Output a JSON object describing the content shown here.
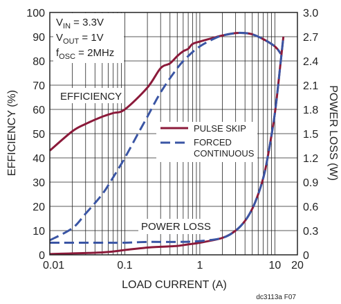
{
  "chart_data": {
    "type": "line",
    "x_scale": "log",
    "xlim": [
      0.01,
      20
    ],
    "x_ticks": [
      0.01,
      0.1,
      1,
      10,
      20
    ],
    "x_tick_labels": [
      "0.01",
      "0.1",
      "1",
      "10",
      "20"
    ],
    "xlabel": "LOAD CURRENT (A)",
    "ylabel_left": "EFFICIENCY (%)",
    "ylim_left": [
      0,
      100
    ],
    "y_ticks_left": [
      0,
      10,
      20,
      30,
      40,
      50,
      60,
      70,
      80,
      90,
      100
    ],
    "y_tick_labels_left": [
      "0",
      "10",
      "20",
      "30",
      "40",
      "50",
      "60",
      "70",
      "80",
      "90",
      "100"
    ],
    "ylabel_right": "POWER LOSS (W)",
    "ylim_right": [
      0,
      3.0
    ],
    "y_ticks_right": [
      0,
      0.3,
      0.6,
      0.9,
      1.2,
      1.5,
      1.8,
      2.1,
      2.4,
      2.7,
      3.0
    ],
    "y_tick_labels_right": [
      "0",
      "0.3",
      "0.6",
      "0.9",
      "1.2",
      "1.5",
      "1.8",
      "2.1",
      "2.4",
      "2.7",
      "3.0"
    ],
    "grid": true,
    "conditions": [
      {
        "sym": "V",
        "sub": "IN",
        "rest": " = 3.3V"
      },
      {
        "sym": "V",
        "sub": "OUT",
        "rest": " = 1V"
      },
      {
        "sym": "f",
        "sub": "OSC",
        "rest": " = 2MHz"
      }
    ],
    "annotations": {
      "efficiency": "EFFICIENCY",
      "power_loss": "POWER LOSS"
    },
    "legend": {
      "position": "center-right",
      "entries": [
        {
          "name_lines": [
            "PULSE SKIP"
          ],
          "style": "solid",
          "color": "#8b1a3a"
        },
        {
          "name_lines": [
            "FORCED",
            "CONTINUOUS"
          ],
          "style": "dashed",
          "color": "#3a55a4"
        }
      ]
    },
    "series": [
      {
        "name": "PULSE SKIP",
        "role": "efficiency",
        "axis": "left",
        "color": "#8b1a3a",
        "style": "solid",
        "x": [
          0.01,
          0.02,
          0.03,
          0.05,
          0.07,
          0.1,
          0.2,
          0.3,
          0.4,
          0.5,
          0.6,
          0.7,
          0.8,
          1,
          1.5,
          2,
          3,
          4,
          5,
          7,
          10,
          12
        ],
        "y": [
          43,
          51,
          54,
          57,
          58.5,
          60,
          69,
          77,
          79,
          82,
          84,
          85,
          87,
          88,
          89.5,
          90.5,
          91.5,
          91.5,
          91,
          89,
          86,
          83
        ]
      },
      {
        "name": "FORCED CONTINUOUS",
        "role": "efficiency",
        "axis": "left",
        "color": "#3a55a4",
        "style": "dashed",
        "x": [
          0.01,
          0.02,
          0.03,
          0.05,
          0.07,
          0.1,
          0.15,
          0.2,
          0.3,
          0.5,
          0.7,
          1,
          1.5,
          2,
          3,
          4,
          5,
          7,
          10,
          12
        ],
        "y": [
          6,
          11,
          17,
          25,
          32,
          40,
          50,
          57,
          67,
          77,
          82,
          86,
          89,
          90.5,
          91.5,
          91.5,
          91,
          89,
          86,
          83
        ]
      },
      {
        "name": "PULSE SKIP",
        "role": "power_loss",
        "axis": "right",
        "color": "#8b1a3a",
        "style": "solid",
        "x": [
          0.01,
          0.05,
          0.1,
          0.2,
          0.3,
          0.5,
          0.7,
          1,
          2,
          3,
          4,
          5,
          6,
          7,
          8,
          10,
          12,
          13
        ],
        "y": [
          0.01,
          0.03,
          0.06,
          0.09,
          0.1,
          0.11,
          0.13,
          0.15,
          0.21,
          0.3,
          0.42,
          0.57,
          0.75,
          0.95,
          1.2,
          1.75,
          2.4,
          2.7
        ]
      },
      {
        "name": "FORCED CONTINUOUS",
        "role": "power_loss",
        "axis": "right",
        "color": "#3a55a4",
        "style": "dashed",
        "x": [
          0.01,
          0.05,
          0.1,
          0.2,
          0.5,
          1,
          2,
          3,
          4,
          5,
          6,
          7,
          8,
          10,
          12,
          13
        ],
        "y": [
          0.15,
          0.15,
          0.15,
          0.16,
          0.16,
          0.17,
          0.21,
          0.3,
          0.42,
          0.57,
          0.75,
          0.95,
          1.2,
          1.75,
          2.4,
          2.7
        ]
      }
    ],
    "figure_note": "dc3113a F07"
  }
}
